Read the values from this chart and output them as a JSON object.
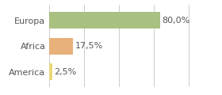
{
  "categories": [
    "America",
    "Africa",
    "Europa"
  ],
  "values": [
    2.5,
    17.5,
    80.0
  ],
  "bar_colors": [
    "#e8d87a",
    "#e8b07a",
    "#a8c080"
  ],
  "labels": [
    "2,5%",
    "17,5%",
    "80,0%"
  ],
  "xlim": [
    0,
    105
  ],
  "background_color": "#ffffff",
  "bar_height": 0.65,
  "label_fontsize": 8,
  "tick_fontsize": 8,
  "grid_color": "#cccccc",
  "grid_xticks": [
    0,
    25,
    50,
    75,
    100
  ]
}
